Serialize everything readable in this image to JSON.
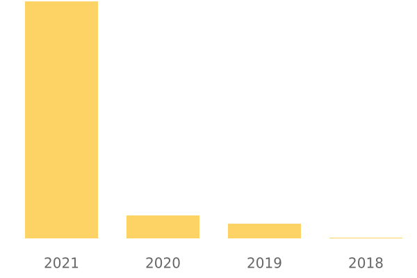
{
  "chart_data": {
    "type": "bar",
    "categories": [
      "2021",
      "2020",
      "2019",
      "2018"
    ],
    "values": [
      100,
      9.7,
      6.2,
      0.3
    ],
    "color": "#fed366",
    "ylim": [
      0,
      100
    ]
  }
}
